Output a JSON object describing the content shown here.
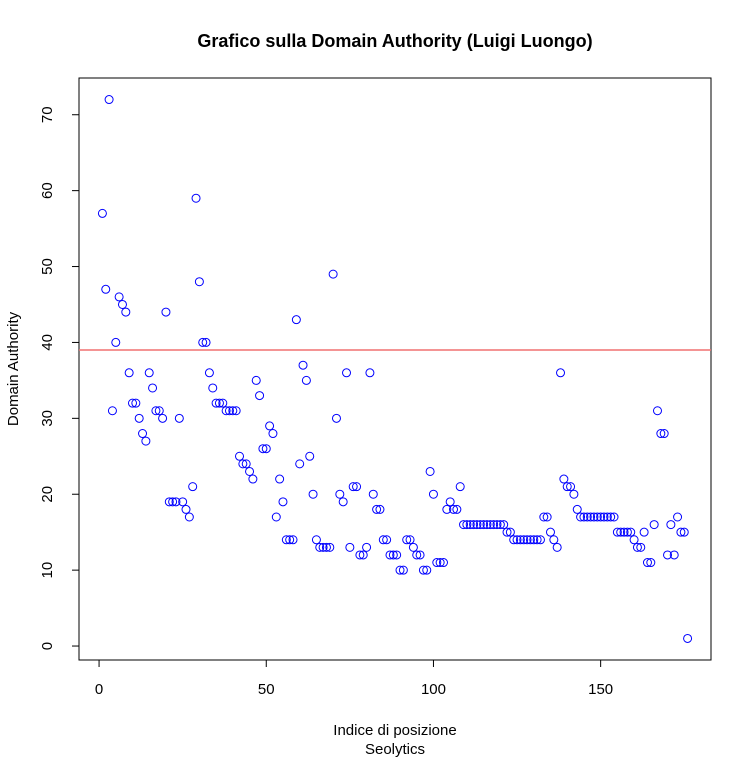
{
  "chart_data": {
    "type": "scatter",
    "title": "Grafico sulla Domain Authority (Luigi Luongo)",
    "xlabel": "Indice di posizione",
    "subtitle": "Seolytics",
    "ylabel": "Domain Authority",
    "color": "#0000ff",
    "hline": 39,
    "hline_color": "#f07070",
    "xlim": [
      -6,
      183
    ],
    "ylim": [
      -1.84,
      74.84
    ],
    "xticks": [
      0,
      50,
      100,
      150
    ],
    "yticks": [
      0,
      10,
      20,
      30,
      40,
      50,
      60,
      70
    ],
    "x": [
      1,
      2,
      3,
      4,
      5,
      6,
      7,
      8,
      9,
      10,
      11,
      12,
      13,
      14,
      15,
      16,
      17,
      18,
      19,
      20,
      21,
      22,
      23,
      24,
      25,
      26,
      27,
      28,
      29,
      30,
      31,
      32,
      33,
      34,
      35,
      36,
      37,
      38,
      39,
      40,
      41,
      42,
      43,
      44,
      45,
      46,
      47,
      48,
      49,
      50,
      51,
      52,
      53,
      54,
      55,
      56,
      57,
      58,
      59,
      60,
      61,
      62,
      63,
      64,
      65,
      66,
      67,
      68,
      69,
      70,
      71,
      72,
      73,
      74,
      75,
      76,
      77,
      78,
      79,
      80,
      81,
      82,
      83,
      84,
      85,
      86,
      87,
      88,
      89,
      90,
      91,
      92,
      93,
      94,
      95,
      96,
      97,
      98,
      99,
      100,
      101,
      102,
      103,
      104,
      105,
      106,
      107,
      108,
      109,
      110,
      111,
      112,
      113,
      114,
      115,
      116,
      117,
      118,
      119,
      120,
      121,
      122,
      123,
      124,
      125,
      126,
      127,
      128,
      129,
      130,
      131,
      132,
      133,
      134,
      135,
      136,
      137,
      138,
      139,
      140,
      141,
      142,
      143,
      144,
      145,
      146,
      147,
      148,
      149,
      150,
      151,
      152,
      153,
      154,
      155,
      156,
      157,
      158,
      159,
      160,
      161,
      162,
      163,
      164,
      165,
      166,
      167,
      168,
      169,
      170,
      171,
      172,
      173,
      174,
      175,
      176
    ],
    "values": [
      57,
      47,
      72,
      31,
      40,
      46,
      45,
      44,
      36,
      32,
      32,
      30,
      28,
      27,
      36,
      34,
      31,
      31,
      30,
      44,
      19,
      19,
      19,
      30,
      19,
      18,
      17,
      21,
      59,
      48,
      40,
      40,
      36,
      34,
      32,
      32,
      32,
      31,
      31,
      31,
      31,
      25,
      24,
      24,
      23,
      22,
      35,
      33,
      26,
      26,
      29,
      28,
      17,
      22,
      19,
      14,
      14,
      14,
      43,
      24,
      37,
      35,
      25,
      20,
      14,
      13,
      13,
      13,
      13,
      49,
      30,
      20,
      19,
      36,
      13,
      21,
      21,
      12,
      12,
      13,
      36,
      20,
      18,
      18,
      14,
      14,
      12,
      12,
      12,
      10,
      10,
      14,
      14,
      13,
      12,
      12,
      10,
      10,
      23,
      20,
      11,
      11,
      11,
      18,
      19,
      18,
      18,
      21,
      16,
      16,
      16,
      16,
      16,
      16,
      16,
      16,
      16,
      16,
      16,
      16,
      16,
      15,
      15,
      14,
      14,
      14,
      14,
      14,
      14,
      14,
      14,
      14,
      17,
      17,
      15,
      14,
      13,
      36,
      22,
      21,
      21,
      20,
      18,
      17,
      17,
      17,
      17,
      17,
      17,
      17,
      17,
      17,
      17,
      17,
      15,
      15,
      15,
      15,
      15,
      14,
      13,
      13,
      15,
      11,
      11,
      16,
      31,
      28,
      28,
      12,
      16,
      12,
      17,
      15,
      15,
      1
    ]
  }
}
